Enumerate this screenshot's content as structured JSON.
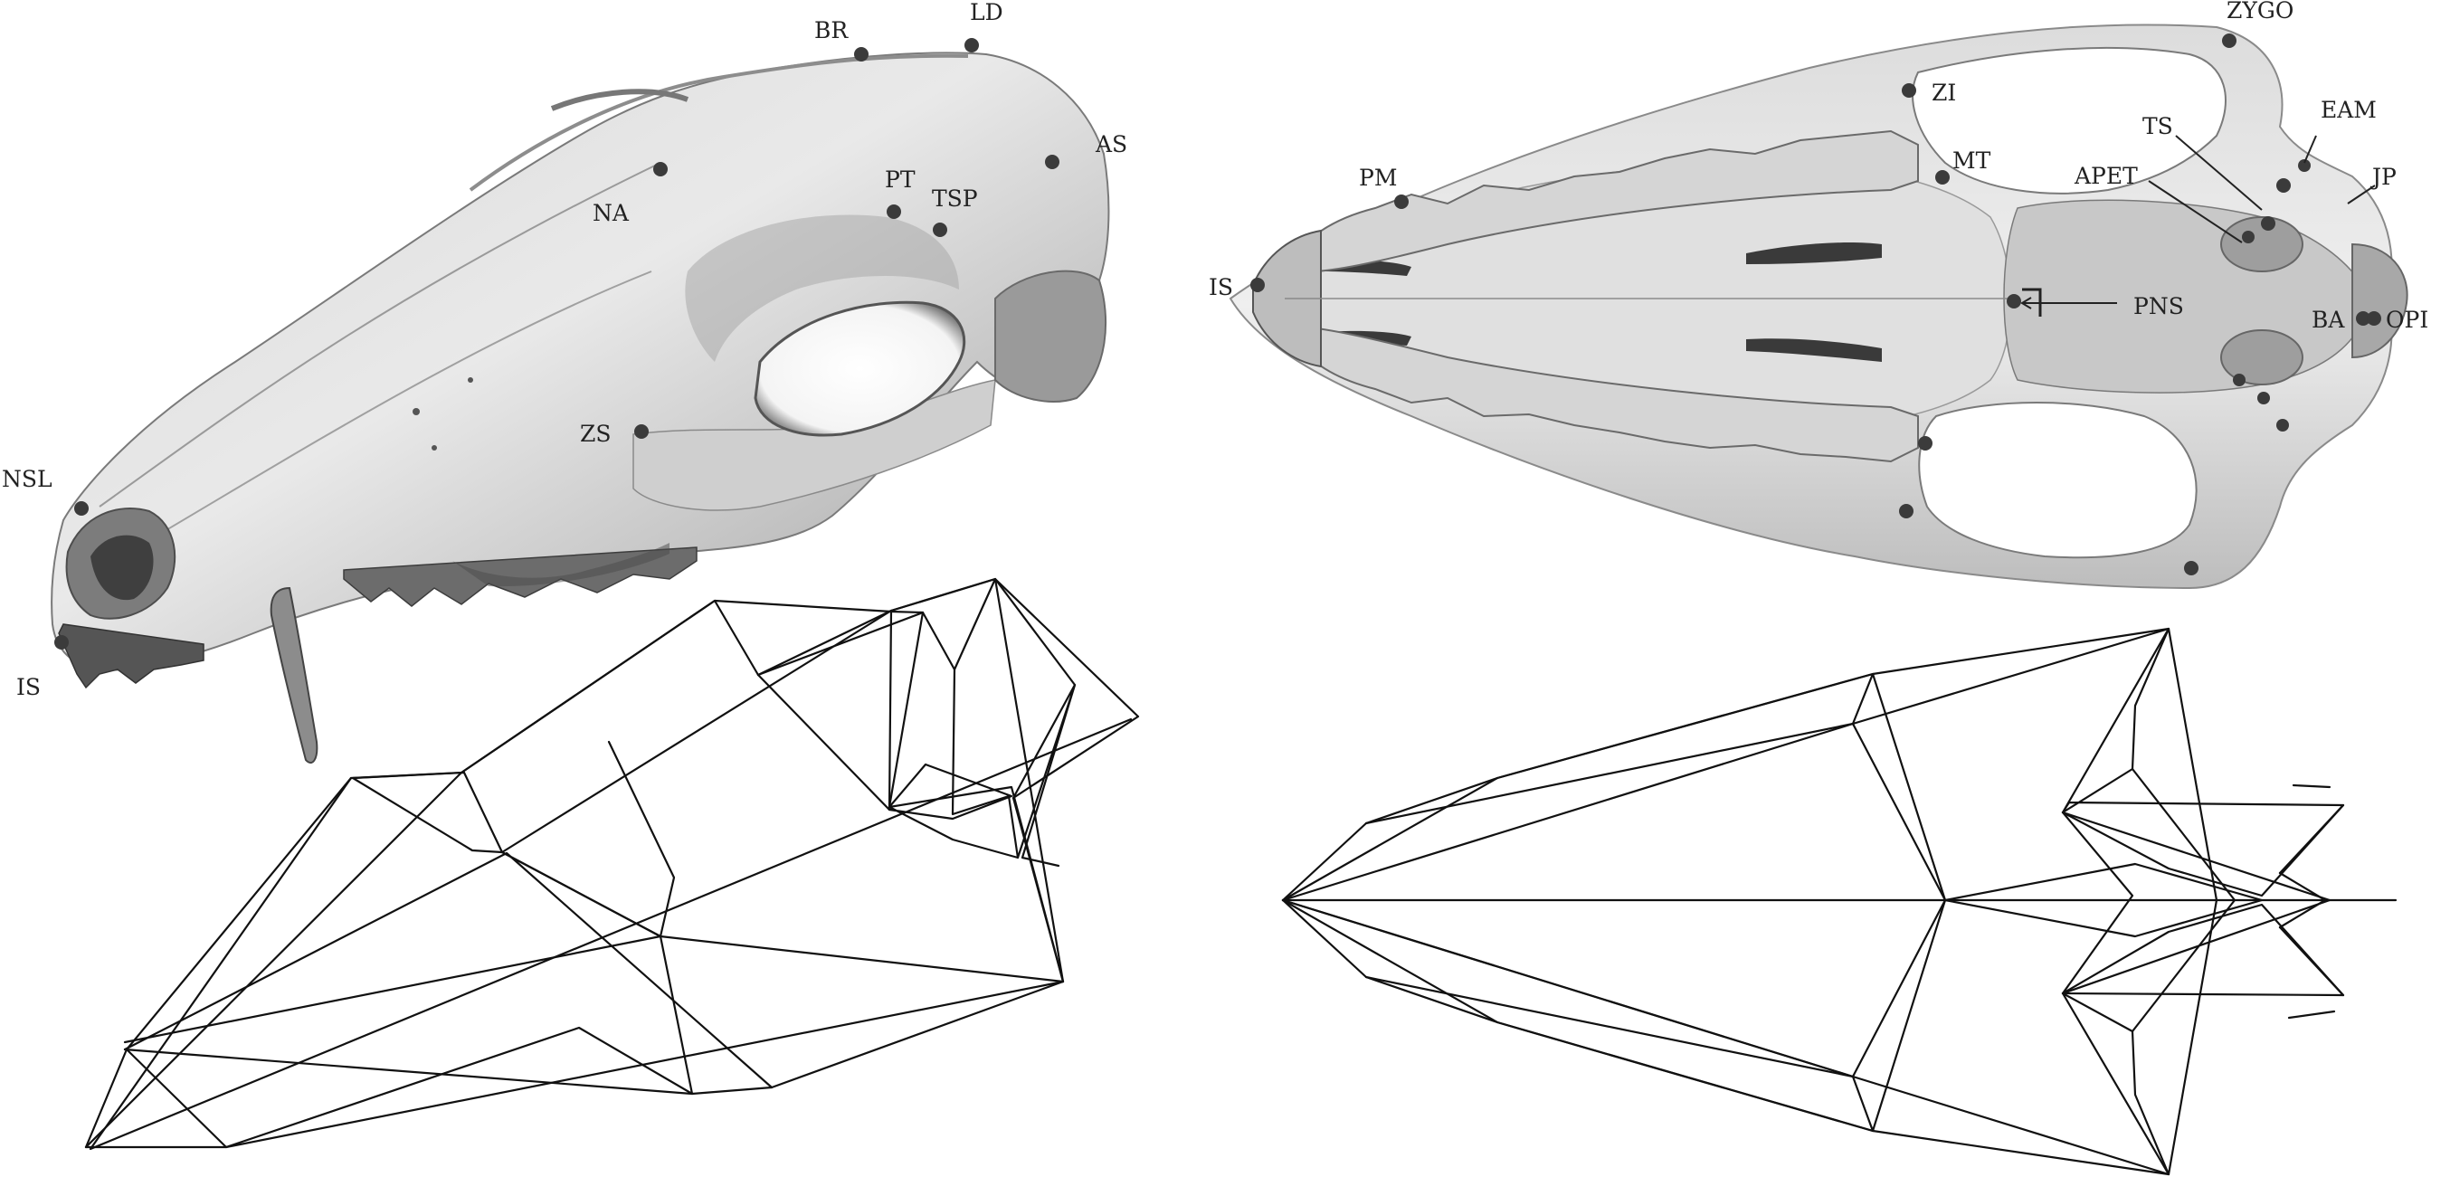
{
  "panels": {
    "lateral_view": {
      "landmarks": [
        "BR",
        "LD",
        "AS",
        "NA",
        "PT",
        "TSP",
        "ZS",
        "NSL",
        "IS"
      ]
    },
    "ventral_view": {
      "landmarks": [
        "ZYGO",
        "ZI",
        "EAM",
        "TS",
        "MT",
        "JP",
        "PM",
        "APET",
        "IS",
        "PNS",
        "BA",
        "OPI"
      ]
    }
  },
  "colors": {
    "background": "#ffffff",
    "bone_light": "#e6e6e6",
    "bone_mid": "#b4b4b4",
    "bone_dark": "#6a6a6a",
    "landmark": "#3b3b3b",
    "wireframe": "#111111",
    "label": "#222222"
  }
}
